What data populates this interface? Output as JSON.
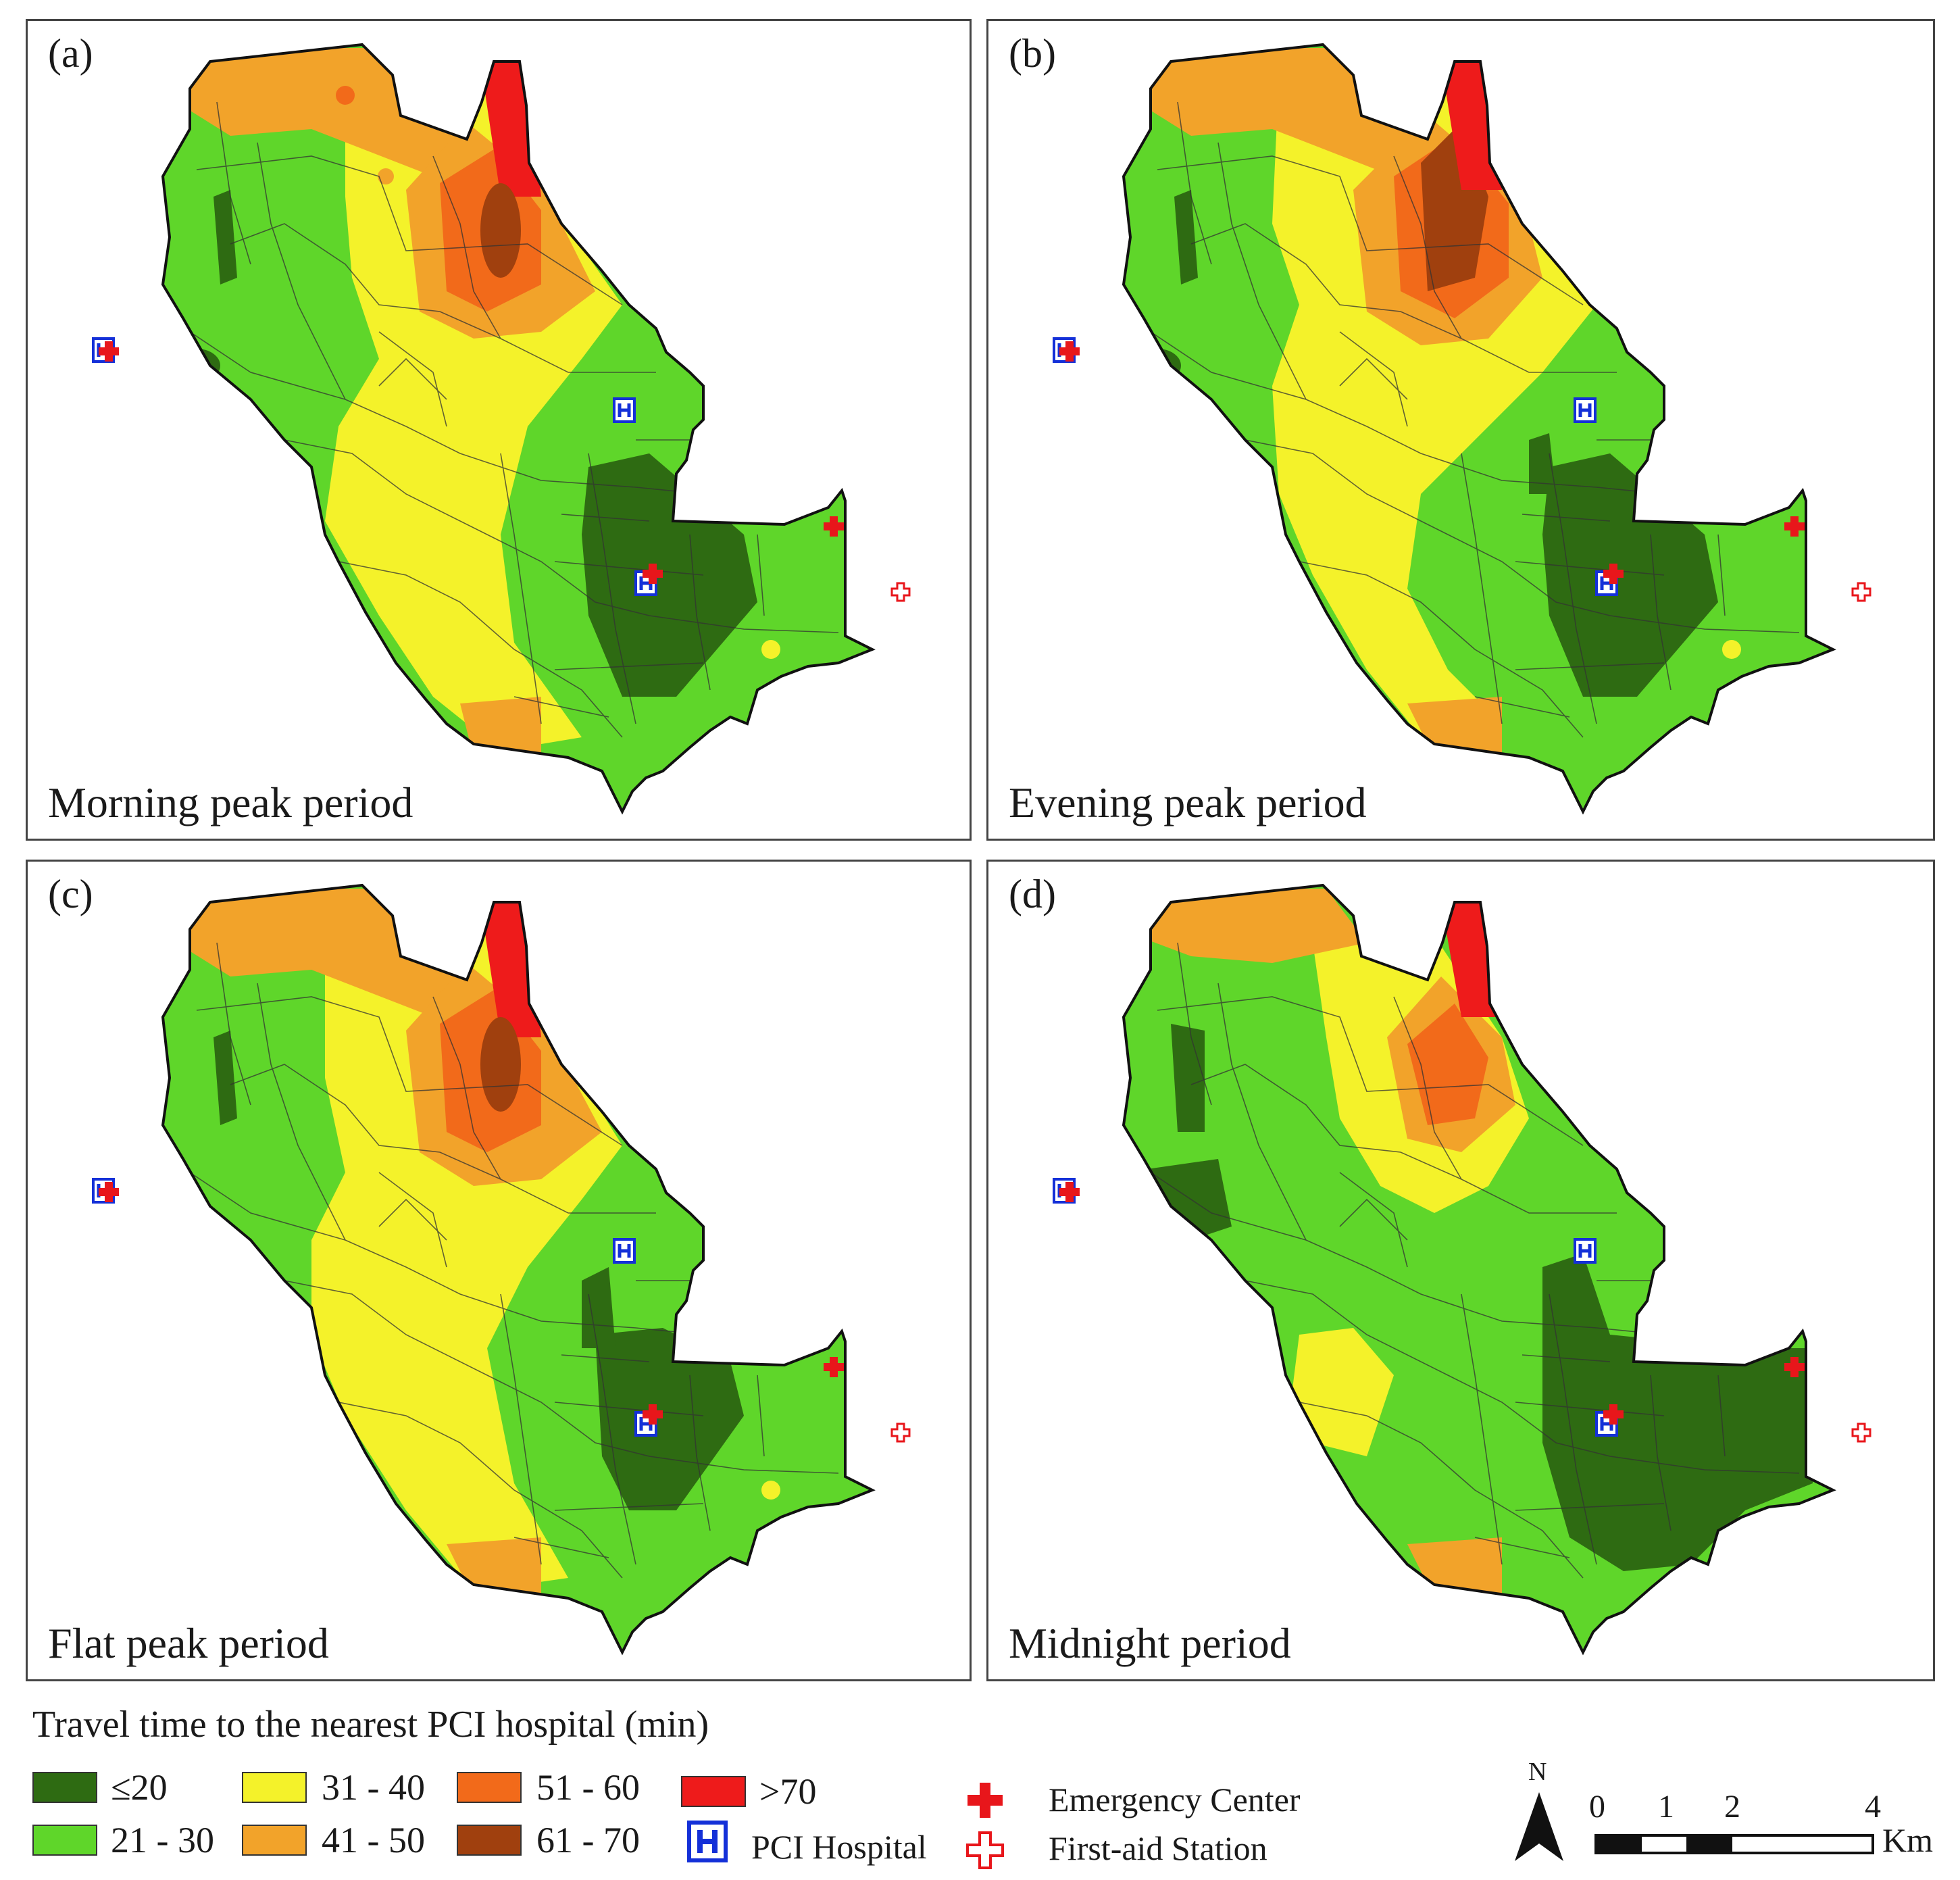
{
  "panels": [
    {
      "id": "a",
      "label": "(a)",
      "period": "Morning peak period"
    },
    {
      "id": "b",
      "label": "(b)",
      "period": "Evening peak period"
    },
    {
      "id": "c",
      "label": "(c)",
      "period": "Flat peak period"
    },
    {
      "id": "d",
      "label": "(d)",
      "period": "Midnight period"
    }
  ],
  "legend": {
    "title": "Travel time to the nearest PCI hospital (min)",
    "classes": [
      {
        "label": "≤20",
        "color": "#2e6b12"
      },
      {
        "label": "21 - 30",
        "color": "#5fd62a"
      },
      {
        "label": "31 - 40",
        "color": "#f4f22a"
      },
      {
        "label": "41 - 50",
        "color": "#f2a32a"
      },
      {
        "label": "51 - 60",
        "color": "#f26a1a"
      },
      {
        "label": "61 - 70",
        "color": "#a0400e"
      },
      {
        "label": ">70",
        "color": "#ee1b1b"
      }
    ],
    "symbols": {
      "pci_hospital": "PCI Hospital",
      "emergency_center": "Emergency Center",
      "first_aid_station": "First-aid Station"
    }
  },
  "north_arrow": {
    "label": "N"
  },
  "scale_bar": {
    "ticks": [
      "0",
      "1",
      "2",
      "4"
    ],
    "unit": "Km"
  }
}
